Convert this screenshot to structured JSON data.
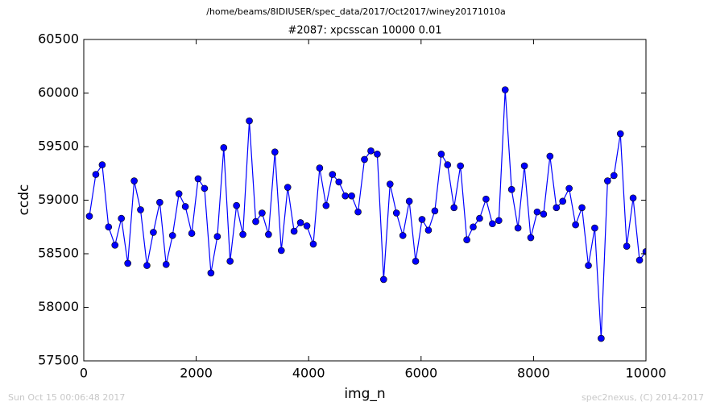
{
  "chart_data": {
    "type": "line",
    "suptitle": "/home/beams/8IDIUSER/spec_data/2017/Oct2017/winey20171010a",
    "title": "#2087: xpcsscan 10000 0.01",
    "xlabel": "img_n",
    "ylabel": "ccdc",
    "footer_left": "Sun Oct 15 00:06:48 2017",
    "footer_right": "spec2nexus, (C) 2014-2017",
    "x": [
      100,
      214,
      328,
      441,
      555,
      669,
      783,
      897,
      1010,
      1124,
      1238,
      1352,
      1465,
      1579,
      1693,
      1807,
      1921,
      2034,
      2148,
      2262,
      2376,
      2490,
      2603,
      2717,
      2831,
      2945,
      3059,
      3172,
      3286,
      3400,
      3514,
      3628,
      3741,
      3855,
      3969,
      4083,
      4196,
      4310,
      4424,
      4538,
      4652,
      4765,
      4879,
      4993,
      5107,
      5221,
      5334,
      5448,
      5562,
      5676,
      5790,
      5903,
      6017,
      6131,
      6245,
      6359,
      6472,
      6586,
      6700,
      6814,
      6927,
      7041,
      7155,
      7269,
      7383,
      7496,
      7610,
      7724,
      7838,
      7951,
      8065,
      8179,
      8293,
      8407,
      8520,
      8634,
      8748,
      8862,
      8976,
      9089,
      9203,
      9317,
      9431,
      9545,
      9658,
      9772,
      9886,
      10000
    ],
    "series": [
      {
        "name": "ccdc",
        "color": "#0000ff",
        "values": [
          58850,
          59240,
          59330,
          58750,
          58580,
          58830,
          58410,
          59180,
          58910,
          58390,
          58700,
          58980,
          58400,
          58670,
          59060,
          58940,
          58690,
          59200,
          59110,
          58320,
          58660,
          59490,
          58430,
          58950,
          58680,
          59740,
          58800,
          58880,
          58680,
          59450,
          58530,
          59120,
          58710,
          58790,
          58760,
          58590,
          59300,
          58950,
          59240,
          59170,
          59040,
          59040,
          58890,
          59380,
          59460,
          59430,
          58260,
          59150,
          58880,
          58670,
          58990,
          58430,
          58820,
          58720,
          58900,
          59430,
          59330,
          58930,
          59320,
          58630,
          58750,
          58830,
          59010,
          58780,
          58810,
          60030,
          59100,
          58740,
          59320,
          58650,
          58890,
          58870,
          59410,
          58930,
          58990,
          59110,
          58770,
          58930,
          58390,
          58740,
          57710,
          59180,
          59230,
          59620,
          58570,
          59020,
          58440,
          58520
        ]
      }
    ],
    "xlim": [
      0,
      10000
    ],
    "xticks": [
      0,
      2000,
      4000,
      6000,
      8000,
      10000
    ],
    "ylim": [
      57500,
      60500
    ],
    "yticks": [
      57500,
      58000,
      58500,
      59000,
      59500,
      60000,
      60500
    ],
    "grid": false
  }
}
